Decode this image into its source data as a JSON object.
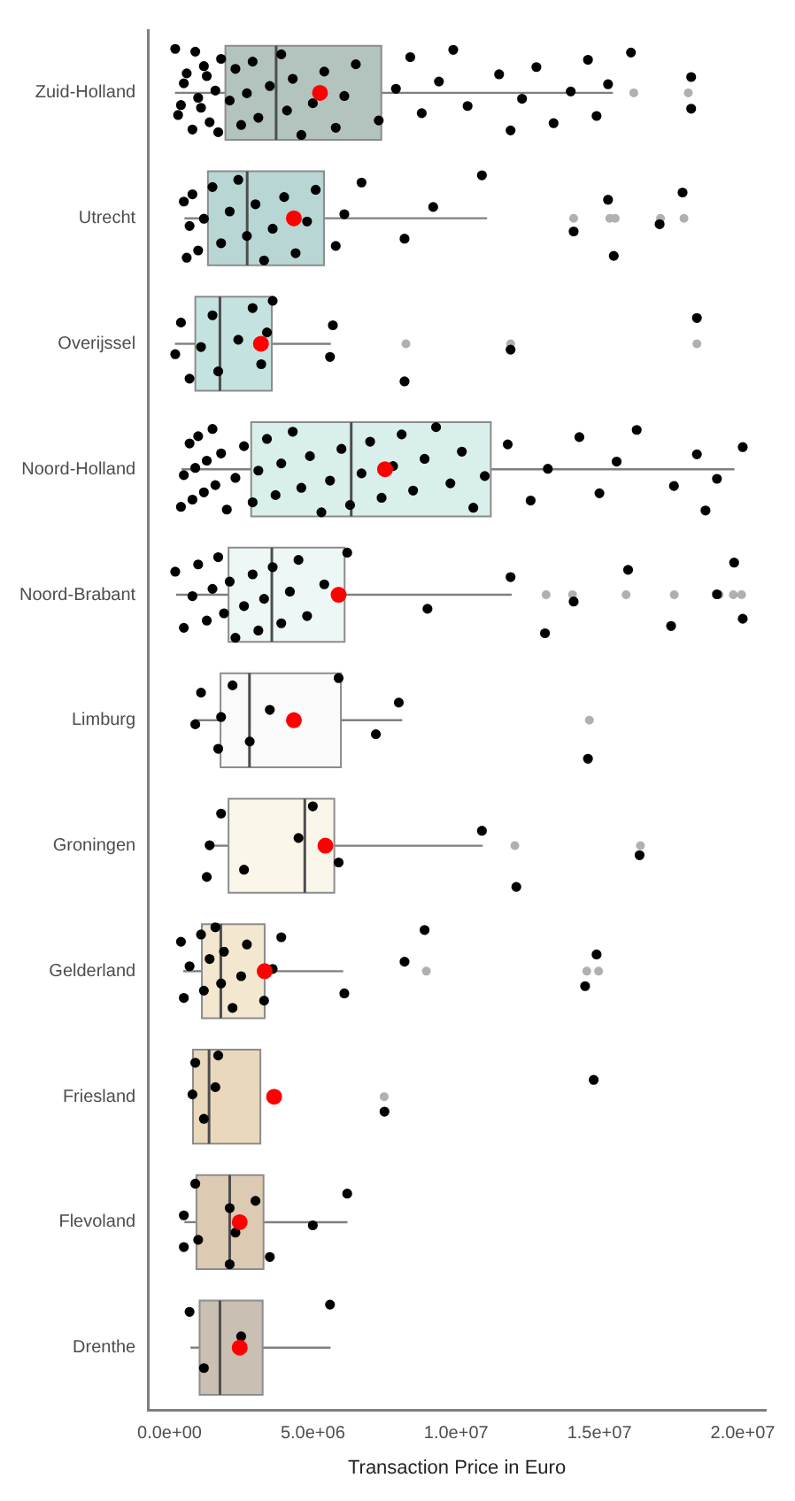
{
  "chart_data": {
    "type": "box",
    "orientation": "horizontal",
    "xlabel": "Transaction Price in Euro",
    "grid": false,
    "legend": false,
    "categories": [
      "Zuid-Holland",
      "Utrecht",
      "Overijssel",
      "Noord-Holland",
      "Noord-Brabant",
      "Limburg",
      "Groningen",
      "Gelderland",
      "Friesland",
      "Flevoland",
      "Drenthe"
    ],
    "xlim": [
      -750000,
      20800000
    ],
    "xticks": [
      {
        "value": 0,
        "label": "0.0e+00"
      },
      {
        "value": 5000000,
        "label": "5.0e+06"
      },
      {
        "value": 10000000,
        "label": "1.0e+07"
      },
      {
        "value": 15000000,
        "label": "1.5e+07"
      },
      {
        "value": 20000000,
        "label": "2.0e+07"
      }
    ],
    "series": [
      {
        "type": "box",
        "colors": [
          "#b3c4bf",
          "#b8d6d3",
          "#c4e2e0",
          "#d9efec",
          "#edf7f5",
          "#fafafa",
          "#fbf6ea",
          "#f3e7cf",
          "#ead8bc",
          "#dccab3",
          "#c9bfb2"
        ],
        "boxes": [
          {
            "low": 190000,
            "q1": 1950000,
            "median": 3720000,
            "q3": 7390000,
            "high": 15470000,
            "mean": 5250000,
            "outliers": [
              16200000,
              18100000
            ]
          },
          {
            "low": 520000,
            "q1": 1340000,
            "median": 2710000,
            "q3": 5390000,
            "high": 11080000,
            "mean": 4340000,
            "outliers": [
              14100000,
              15360000,
              15550000,
              17130000,
              17950000
            ]
          },
          {
            "low": 190000,
            "q1": 900000,
            "median": 1760000,
            "q3": 3570000,
            "high": 5630000,
            "mean": 3190000,
            "outliers": [
              8250000,
              11900000,
              18400000
            ]
          },
          {
            "low": 420000,
            "q1": 2850000,
            "median": 6340000,
            "q3": 11210000,
            "high": 19710000,
            "mean": 7520000
          },
          {
            "low": 230000,
            "q1": 2060000,
            "median": 3570000,
            "q3": 6110000,
            "high": 11940000,
            "mean": 5900000,
            "outliers": [
              13140000,
              14060000,
              15930000,
              17610000,
              19180000,
              19670000,
              19960000
            ]
          },
          {
            "low": 860000,
            "q1": 1780000,
            "median": 2790000,
            "q3": 5980000,
            "high": 8120000,
            "mean": 4340000,
            "outliers": [
              14650000
            ]
          },
          {
            "low": 1280000,
            "q1": 2060000,
            "median": 4720000,
            "q3": 5750000,
            "high": 10930000,
            "mean": 5440000,
            "outliers": [
              12050000,
              16430000
            ]
          },
          {
            "low": 480000,
            "q1": 1130000,
            "median": 1790000,
            "q3": 3320000,
            "high": 6060000,
            "mean": 3320000,
            "outliers": [
              8960000,
              14560000,
              14970000
            ]
          },
          {
            "low": 760000,
            "q1": 820000,
            "median": 1380000,
            "q3": 3170000,
            "high": 3170000,
            "mean": 3650000,
            "outliers": [
              7490000
            ]
          },
          {
            "low": 520000,
            "q1": 940000,
            "median": 2100000,
            "q3": 3280000,
            "high": 6210000,
            "mean": 2450000
          },
          {
            "low": 730000,
            "q1": 1050000,
            "median": 1760000,
            "q3": 3250000,
            "high": 5620000,
            "mean": 2450000
          }
        ]
      },
      {
        "type": "scatter",
        "color": "#000000",
        "x": [
          "Zuid-Holland",
          "Zuid-Holland",
          "Zuid-Holland",
          "Zuid-Holland",
          "Zuid-Holland",
          "Zuid-Holland",
          "Zuid-Holland",
          "Zuid-Holland",
          "Zuid-Holland",
          "Zuid-Holland",
          "Zuid-Holland",
          "Zuid-Holland",
          "Zuid-Holland",
          "Zuid-Holland",
          "Zuid-Holland",
          "Zuid-Holland",
          "Zuid-Holland",
          "Zuid-Holland",
          "Zuid-Holland",
          "Zuid-Holland",
          "Zuid-Holland",
          "Zuid-Holland",
          "Zuid-Holland",
          "Zuid-Holland",
          "Zuid-Holland",
          "Zuid-Holland",
          "Zuid-Holland",
          "Zuid-Holland",
          "Zuid-Holland",
          "Zuid-Holland",
          "Zuid-Holland",
          "Zuid-Holland",
          "Zuid-Holland",
          "Zuid-Holland",
          "Zuid-Holland",
          "Zuid-Holland",
          "Zuid-Holland",
          "Zuid-Holland",
          "Zuid-Holland",
          "Zuid-Holland",
          "Zuid-Holland",
          "Zuid-Holland",
          "Zuid-Holland",
          "Zuid-Holland",
          "Zuid-Holland",
          "Zuid-Holland",
          "Zuid-Holland",
          "Zuid-Holland",
          "Zuid-Holland",
          "Zuid-Holland"
        ],
        "values": [
          200000,
          400000,
          600000,
          800000,
          1000000,
          1200000,
          1400000,
          1600000,
          1800000,
          300000,
          500000,
          900000,
          1100000,
          1300000,
          1700000,
          2100000,
          2300000,
          2500000,
          2700000,
          2900000,
          3100000,
          3500000,
          3900000,
          4100000,
          4300000,
          4600000,
          5000000,
          5400000,
          5800000,
          6100000,
          6500000,
          7300000,
          7900000,
          8400000,
          8800000,
          9400000,
          9900000,
          10400000,
          11500000,
          11900000,
          12300000,
          12800000,
          13400000,
          14000000,
          14600000,
          14900000,
          15300000,
          16100000,
          18200000,
          18200000
        ]
      },
      {
        "type": "scatter",
        "color": "#000000",
        "x": [
          "Utrecht",
          "Utrecht",
          "Utrecht",
          "Utrecht",
          "Utrecht",
          "Utrecht",
          "Utrecht",
          "Utrecht",
          "Utrecht",
          "Utrecht",
          "Utrecht",
          "Utrecht",
          "Utrecht",
          "Utrecht",
          "Utrecht",
          "Utrecht",
          "Utrecht",
          "Utrecht",
          "Utrecht",
          "Utrecht",
          "Utrecht",
          "Utrecht",
          "Utrecht",
          "Utrecht",
          "Utrecht",
          "Utrecht",
          "Utrecht",
          "Utrecht",
          "Utrecht"
        ],
        "values": [
          500000,
          600000,
          700000,
          800000,
          1000000,
          1200000,
          1500000,
          1800000,
          2100000,
          2400000,
          2700000,
          3000000,
          3300000,
          3600000,
          4000000,
          4400000,
          4800000,
          5100000,
          5800000,
          6100000,
          6700000,
          8200000,
          9200000,
          10900000,
          14100000,
          15300000,
          15500000,
          17100000,
          17900000
        ]
      },
      {
        "type": "scatter",
        "color": "#000000",
        "x": [
          "Overijssel",
          "Overijssel",
          "Overijssel",
          "Overijssel",
          "Overijssel",
          "Overijssel",
          "Overijssel",
          "Overijssel",
          "Overijssel",
          "Overijssel",
          "Overijssel",
          "Overijssel",
          "Overijssel",
          "Overijssel",
          "Overijssel",
          "Overijssel"
        ],
        "values": [
          200000,
          400000,
          700000,
          1100000,
          1500000,
          1700000,
          2400000,
          2900000,
          3200000,
          3400000,
          3600000,
          5600000,
          5700000,
          8200000,
          11900000,
          18400000
        ]
      },
      {
        "type": "scatter",
        "color": "#000000",
        "x": [
          "Noord-Holland",
          "Noord-Holland",
          "Noord-Holland",
          "Noord-Holland",
          "Noord-Holland",
          "Noord-Holland",
          "Noord-Holland",
          "Noord-Holland",
          "Noord-Holland",
          "Noord-Holland",
          "Noord-Holland",
          "Noord-Holland",
          "Noord-Holland",
          "Noord-Holland",
          "Noord-Holland",
          "Noord-Holland",
          "Noord-Holland",
          "Noord-Holland",
          "Noord-Holland",
          "Noord-Holland",
          "Noord-Holland",
          "Noord-Holland",
          "Noord-Holland",
          "Noord-Holland",
          "Noord-Holland",
          "Noord-Holland",
          "Noord-Holland",
          "Noord-Holland",
          "Noord-Holland",
          "Noord-Holland",
          "Noord-Holland",
          "Noord-Holland",
          "Noord-Holland",
          "Noord-Holland",
          "Noord-Holland",
          "Noord-Holland",
          "Noord-Holland",
          "Noord-Holland",
          "Noord-Holland",
          "Noord-Holland",
          "Noord-Holland",
          "Noord-Holland",
          "Noord-Holland",
          "Noord-Holland",
          "Noord-Holland",
          "Noord-Holland",
          "Noord-Holland",
          "Noord-Holland",
          "Noord-Holland",
          "Noord-Holland"
        ],
        "values": [
          400000,
          500000,
          700000,
          800000,
          900000,
          1000000,
          1200000,
          1300000,
          1500000,
          1600000,
          1800000,
          2000000,
          2300000,
          2600000,
          2900000,
          3100000,
          3400000,
          3700000,
          3900000,
          4300000,
          4600000,
          4900000,
          5300000,
          5600000,
          6000000,
          6300000,
          6700000,
          7000000,
          7400000,
          7800000,
          8100000,
          8500000,
          8900000,
          9300000,
          9800000,
          10200000,
          10600000,
          11000000,
          11800000,
          12600000,
          13200000,
          14300000,
          15000000,
          15600000,
          16300000,
          17600000,
          18400000,
          18700000,
          19100000,
          20000000
        ]
      },
      {
        "type": "scatter",
        "color": "#000000",
        "x": [
          "Noord-Brabant",
          "Noord-Brabant",
          "Noord-Brabant",
          "Noord-Brabant",
          "Noord-Brabant",
          "Noord-Brabant",
          "Noord-Brabant",
          "Noord-Brabant",
          "Noord-Brabant",
          "Noord-Brabant",
          "Noord-Brabant",
          "Noord-Brabant",
          "Noord-Brabant",
          "Noord-Brabant",
          "Noord-Brabant",
          "Noord-Brabant",
          "Noord-Brabant",
          "Noord-Brabant",
          "Noord-Brabant",
          "Noord-Brabant",
          "Noord-Brabant",
          "Noord-Brabant",
          "Noord-Brabant",
          "Noord-Brabant",
          "Noord-Brabant",
          "Noord-Brabant",
          "Noord-Brabant",
          "Noord-Brabant",
          "Noord-Brabant",
          "Noord-Brabant"
        ],
        "values": [
          200000,
          500000,
          800000,
          1000000,
          1300000,
          1500000,
          1700000,
          1900000,
          2100000,
          2300000,
          2600000,
          2900000,
          3100000,
          3300000,
          3600000,
          3900000,
          4200000,
          4500000,
          4800000,
          5400000,
          6200000,
          9000000,
          11900000,
          13100000,
          14100000,
          16000000,
          17500000,
          19100000,
          19700000,
          20000000
        ]
      },
      {
        "type": "scatter",
        "color": "#000000",
        "x": [
          "Limburg",
          "Limburg",
          "Limburg",
          "Limburg",
          "Limburg",
          "Limburg",
          "Limburg",
          "Limburg",
          "Limburg",
          "Limburg",
          "Limburg"
        ],
        "values": [
          900000,
          1100000,
          1700000,
          1800000,
          2200000,
          2800000,
          3500000,
          5900000,
          7200000,
          8000000,
          14600000
        ]
      },
      {
        "type": "scatter",
        "color": "#000000",
        "x": [
          "Groningen",
          "Groningen",
          "Groningen",
          "Groningen",
          "Groningen",
          "Groningen",
          "Groningen",
          "Groningen",
          "Groningen",
          "Groningen"
        ],
        "values": [
          1300000,
          1400000,
          1800000,
          2600000,
          4500000,
          5000000,
          5900000,
          10900000,
          12100000,
          16400000
        ]
      },
      {
        "type": "scatter",
        "color": "#000000",
        "x": [
          "Gelderland",
          "Gelderland",
          "Gelderland",
          "Gelderland",
          "Gelderland",
          "Gelderland",
          "Gelderland",
          "Gelderland",
          "Gelderland",
          "Gelderland",
          "Gelderland",
          "Gelderland",
          "Gelderland",
          "Gelderland",
          "Gelderland",
          "Gelderland",
          "Gelderland",
          "Gelderland",
          "Gelderland",
          "Gelderland"
        ],
        "values": [
          400000,
          500000,
          700000,
          1100000,
          1200000,
          1400000,
          1600000,
          1800000,
          1900000,
          2200000,
          2500000,
          2700000,
          3300000,
          3600000,
          3900000,
          6100000,
          8200000,
          8900000,
          14500000,
          14900000
        ]
      },
      {
        "type": "scatter",
        "color": "#000000",
        "x": [
          "Friesland",
          "Friesland",
          "Friesland",
          "Friesland",
          "Friesland",
          "Friesland",
          "Friesland"
        ],
        "values": [
          800000,
          900000,
          1200000,
          1600000,
          1700000,
          7500000,
          14800000
        ]
      },
      {
        "type": "scatter",
        "color": "#000000",
        "x": [
          "Flevoland",
          "Flevoland",
          "Flevoland",
          "Flevoland",
          "Flevoland",
          "Flevoland",
          "Flevoland",
          "Flevoland",
          "Flevoland",
          "Flevoland",
          "Flevoland"
        ],
        "values": [
          500000,
          500000,
          900000,
          1000000,
          2100000,
          2100000,
          2300000,
          3000000,
          3500000,
          5000000,
          6200000
        ]
      },
      {
        "type": "scatter",
        "color": "#000000",
        "x": [
          "Drenthe",
          "Drenthe",
          "Drenthe",
          "Drenthe"
        ],
        "values": [
          700000,
          1200000,
          2500000,
          5600000
        ]
      }
    ]
  }
}
